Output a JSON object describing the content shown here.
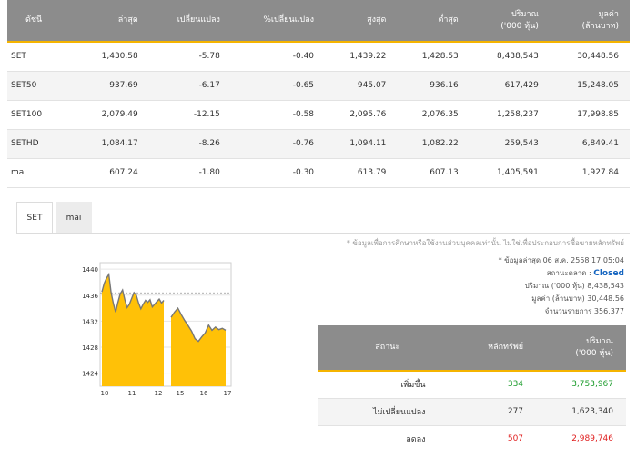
{
  "index_table": {
    "headers": [
      "ดัชนี",
      "ล่าสุด",
      "เปลี่ยนแปลง",
      "%เปลี่ยนแปลง",
      "สูงสุด",
      "ต่ำสุด",
      "ปริมาณ",
      "('000 หุ้น)",
      "มูลค่า",
      "(ล้านบาท)"
    ],
    "rows": [
      {
        "name": "SET",
        "last": "1,430.58",
        "change": "-5.78",
        "pct": "-0.40",
        "high": "1,439.22",
        "low": "1,428.53",
        "volume": "8,438,543",
        "value": "30,448.56"
      },
      {
        "name": "SET50",
        "last": "937.69",
        "change": "-6.17",
        "pct": "-0.65",
        "high": "945.07",
        "low": "936.16",
        "volume": "617,429",
        "value": "15,248.05"
      },
      {
        "name": "SET100",
        "last": "2,079.49",
        "change": "-12.15",
        "pct": "-0.58",
        "high": "2,095.76",
        "low": "2,076.35",
        "volume": "1,258,237",
        "value": "17,998.85"
      },
      {
        "name": "SETHD",
        "last": "1,084.17",
        "change": "-8.26",
        "pct": "-0.76",
        "high": "1,094.11",
        "low": "1,082.22",
        "volume": "259,543",
        "value": "6,849.41"
      },
      {
        "name": "mai",
        "last": "607.24",
        "change": "-1.80",
        "pct": "-0.30",
        "high": "613.79",
        "low": "607.13",
        "volume": "1,405,591",
        "value": "1,927.84"
      }
    ]
  },
  "tabs": [
    {
      "label": "SET",
      "active": true
    },
    {
      "label": "mai",
      "active": false
    }
  ],
  "info": {
    "disclaimer": "* ข้อมูลเพื่อการศึกษาหรือใช้งานส่วนบุคคลเท่านั้น ไม่ใช่เพื่อประกอบการซื้อขายหลักทรัพย์",
    "updated": "* ข้อมูลล่าสุด 06 ส.ค. 2558 17:05:04",
    "status_label": "สถานะตลาด :",
    "status_value": "Closed",
    "volume_label": "ปริมาณ ('000 หุ้น)",
    "volume_value": "8,438,543",
    "value_label": "มูลค่า (ล้านบาท)",
    "value_value": "30,448.56",
    "deals_label": "จำนวนรายการ",
    "deals_value": "356,377"
  },
  "breadth": {
    "headers": [
      "สถานะ",
      "หลักทรัพย์",
      "ปริมาณ",
      "('000 หุ้น)"
    ],
    "rows": [
      {
        "status": "เพิ่มขึ้น",
        "count": "334",
        "volume": "3,753,967",
        "kind": "up"
      },
      {
        "status": "ไม่เปลี่ยนแปลง",
        "count": "277",
        "volume": "1,623,340",
        "kind": "flat"
      },
      {
        "status": "ลดลง",
        "count": "507",
        "volume": "2,989,746",
        "kind": "down"
      }
    ]
  },
  "chart_data": {
    "type": "area",
    "y_ticks": [
      "1440",
      "1436",
      "1432",
      "1428",
      "1424"
    ],
    "x_ticks": [
      "10",
      "11",
      "12",
      "15",
      "16",
      "17"
    ],
    "ylim": [
      1422,
      1441
    ],
    "previous_close": 1436.36,
    "fill_color": "#ffc107",
    "line_color": "#777777",
    "morning": [
      1436.5,
      1437.8,
      1438.6,
      1439.2,
      1436.4,
      1434.7,
      1433.4,
      1434.9,
      1436.2,
      1436.8,
      1435.3,
      1434.1,
      1434.6,
      1435.5,
      1436.4,
      1436.0,
      1434.8,
      1433.9,
      1434.6,
      1435.2,
      1434.9,
      1435.3,
      1434.2,
      1434.6,
      1435.0,
      1435.4,
      1434.8,
      1435.2
    ],
    "afternoon": [
      1432.6,
      1433.4,
      1434.0,
      1433.0,
      1432.1,
      1431.3,
      1430.5,
      1429.3,
      1428.9,
      1429.6,
      1430.2,
      1431.4,
      1430.6,
      1431.1,
      1430.7,
      1430.9,
      1430.6
    ]
  }
}
